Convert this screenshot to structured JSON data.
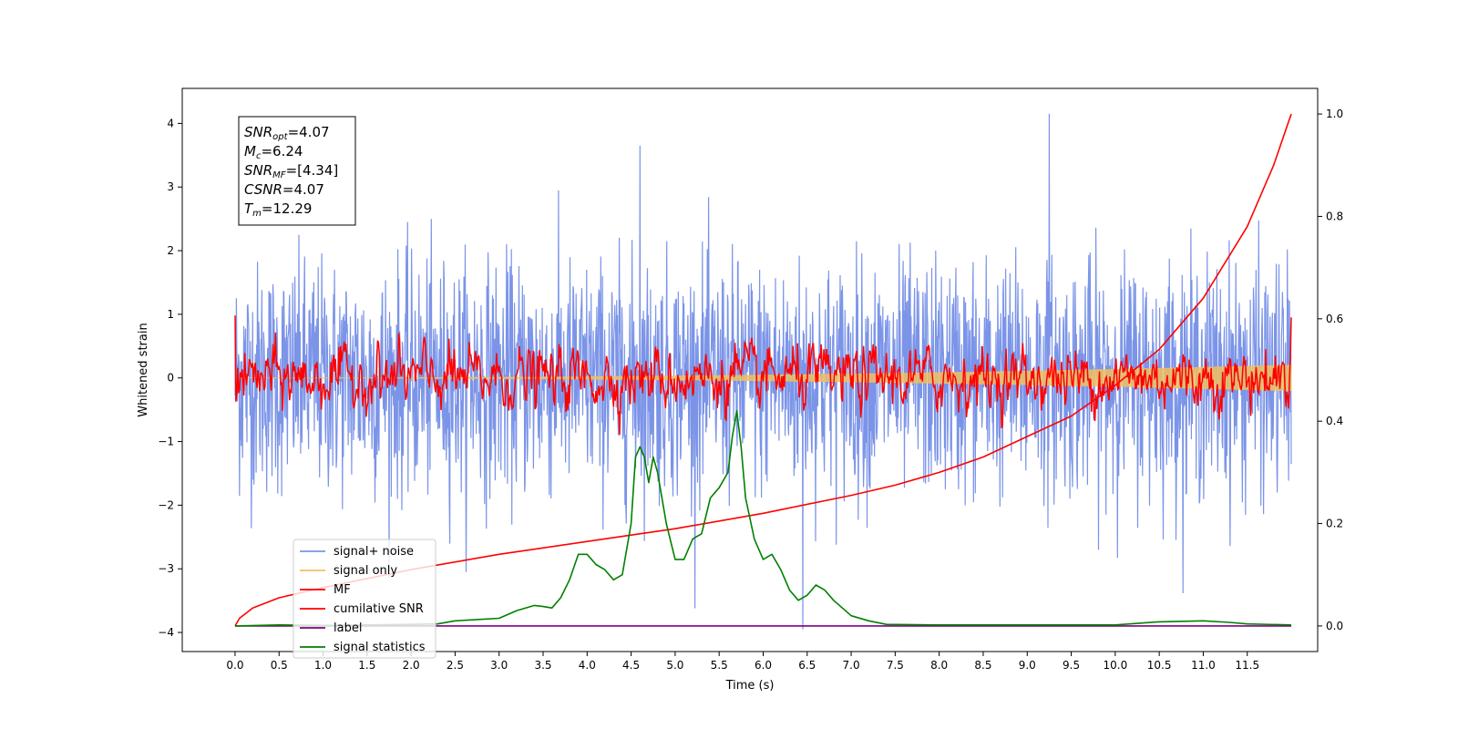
{
  "chart_data": {
    "type": "line",
    "xlabel": "Time (s)",
    "ylabel": "Whitened strain",
    "xlim": [
      -0.6,
      12.3
    ],
    "ylim": [
      -4.3,
      4.55
    ],
    "y2lim": [
      -0.05,
      1.05
    ],
    "xticks": [
      "0.0",
      "0.5",
      "1.0",
      "1.5",
      "2.0",
      "2.5",
      "3.0",
      "3.5",
      "4.0",
      "4.5",
      "5.0",
      "5.5",
      "6.0",
      "6.5",
      "7.0",
      "7.5",
      "8.0",
      "8.5",
      "9.0",
      "9.5",
      "10.0",
      "10.5",
      "11.0",
      "11.5"
    ],
    "yticks": [
      "4",
      "3",
      "2",
      "1",
      "0",
      "−1",
      "−2",
      "−3",
      "−4"
    ],
    "y2ticks": [
      "1.0",
      "0.8",
      "0.6",
      "0.4",
      "0.2",
      "0.0"
    ],
    "grid": false,
    "legend_placement": "lower-left",
    "annotation": {
      "lines": [
        {
          "sym": "SNR",
          "sub": "opt",
          "text": "=4.07"
        },
        {
          "sym": "M",
          "sub": "c",
          "text": "=6.24"
        },
        {
          "sym": "SNR",
          "sub": "MF",
          "text": "=[4.34]"
        },
        {
          "sym": "CSNR",
          "sub": "",
          "text": "=4.07"
        },
        {
          "sym": "T",
          "sub": "m",
          "text": "=12.29"
        }
      ]
    },
    "series": [
      {
        "name": "signal+ noise",
        "color": "#7b94e8",
        "axis": "left",
        "noise_std": 0.9,
        "x_range": [
          0,
          12
        ]
      },
      {
        "name": "signal only",
        "color": "#f0c060",
        "axis": "left",
        "note_amplitude": [
          0.0,
          0.2
        ],
        "x_range": [
          0,
          12
        ]
      },
      {
        "name": "MF",
        "color": "#ff0000",
        "axis": "left",
        "noise_std": 0.2,
        "x_range": [
          0,
          12
        ]
      },
      {
        "name": "cumilative SNR",
        "color": "#ff0000",
        "axis": "right",
        "x": [
          0.0,
          0.05,
          0.2,
          0.5,
          1.0,
          2.0,
          3.0,
          4.0,
          5.0,
          6.0,
          7.0,
          7.5,
          8.0,
          8.5,
          9.0,
          9.5,
          10.0,
          10.5,
          11.0,
          11.5,
          11.8,
          12.0
        ],
        "y": [
          0.0,
          0.015,
          0.035,
          0.055,
          0.075,
          0.11,
          0.14,
          0.165,
          0.19,
          0.22,
          0.255,
          0.275,
          0.3,
          0.33,
          0.37,
          0.41,
          0.47,
          0.54,
          0.64,
          0.78,
          0.9,
          1.0
        ]
      },
      {
        "name": "label",
        "color": "#800080",
        "axis": "right",
        "x": [
          0.0,
          12.0
        ],
        "y": [
          0.0,
          0.0
        ]
      },
      {
        "name": "signal statistics",
        "color": "#008000",
        "axis": "right",
        "x": [
          0.0,
          0.5,
          1.0,
          1.5,
          2.0,
          2.3,
          2.5,
          2.7,
          3.0,
          3.2,
          3.4,
          3.5,
          3.6,
          3.7,
          3.8,
          3.9,
          4.0,
          4.1,
          4.2,
          4.3,
          4.4,
          4.5,
          4.55,
          4.6,
          4.65,
          4.7,
          4.75,
          4.8,
          4.9,
          5.0,
          5.1,
          5.2,
          5.3,
          5.4,
          5.5,
          5.6,
          5.65,
          5.7,
          5.75,
          5.8,
          5.9,
          6.0,
          6.1,
          6.2,
          6.3,
          6.4,
          6.5,
          6.6,
          6.7,
          6.8,
          7.0,
          7.2,
          7.4,
          8.0,
          9.0,
          10.0,
          10.5,
          11.0,
          11.3,
          11.5,
          12.0
        ],
        "y": [
          0.0,
          0.002,
          0.001,
          0.002,
          0.003,
          0.004,
          0.01,
          0.012,
          0.015,
          0.03,
          0.04,
          0.038,
          0.035,
          0.055,
          0.09,
          0.14,
          0.14,
          0.12,
          0.11,
          0.09,
          0.1,
          0.2,
          0.33,
          0.35,
          0.33,
          0.28,
          0.33,
          0.3,
          0.2,
          0.13,
          0.13,
          0.17,
          0.18,
          0.25,
          0.27,
          0.3,
          0.37,
          0.42,
          0.35,
          0.25,
          0.17,
          0.13,
          0.14,
          0.11,
          0.07,
          0.05,
          0.06,
          0.08,
          0.07,
          0.05,
          0.02,
          0.01,
          0.003,
          0.002,
          0.002,
          0.002,
          0.008,
          0.01,
          0.007,
          0.004,
          0.002
        ]
      }
    ]
  }
}
